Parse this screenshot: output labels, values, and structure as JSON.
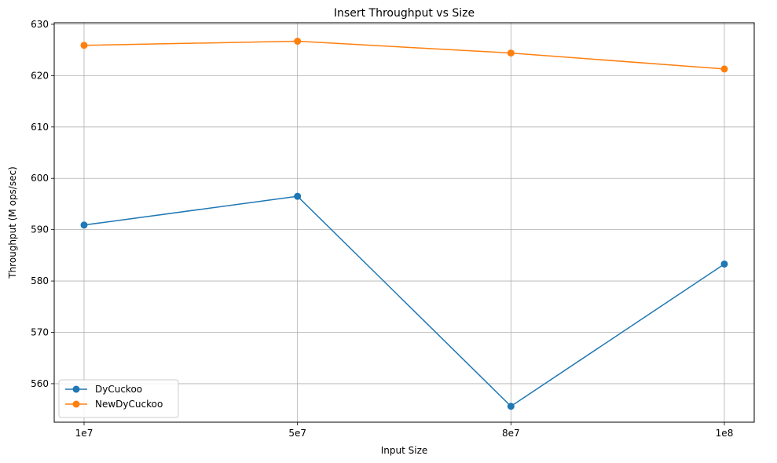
{
  "chart_data": {
    "type": "line",
    "title": "Insert Throughput vs Size",
    "xlabel": "Input Size",
    "ylabel": "Throughput (M ops/sec)",
    "categories": [
      "1e7",
      "5e7",
      "8e7",
      "1e8"
    ],
    "ylim": [
      552.5,
      630.3
    ],
    "yticks": [
      560,
      570,
      580,
      590,
      600,
      610,
      620,
      630
    ],
    "grid": true,
    "legend_position": "lower-left",
    "series": [
      {
        "name": "DyCuckoo",
        "color": "#1f77b4",
        "marker": "circle",
        "values": [
          590.9,
          596.5,
          555.6,
          583.3
        ]
      },
      {
        "name": "NewDyCuckoo",
        "color": "#ff7f0e",
        "marker": "circle",
        "values": [
          625.9,
          626.7,
          624.4,
          621.3
        ]
      }
    ]
  }
}
